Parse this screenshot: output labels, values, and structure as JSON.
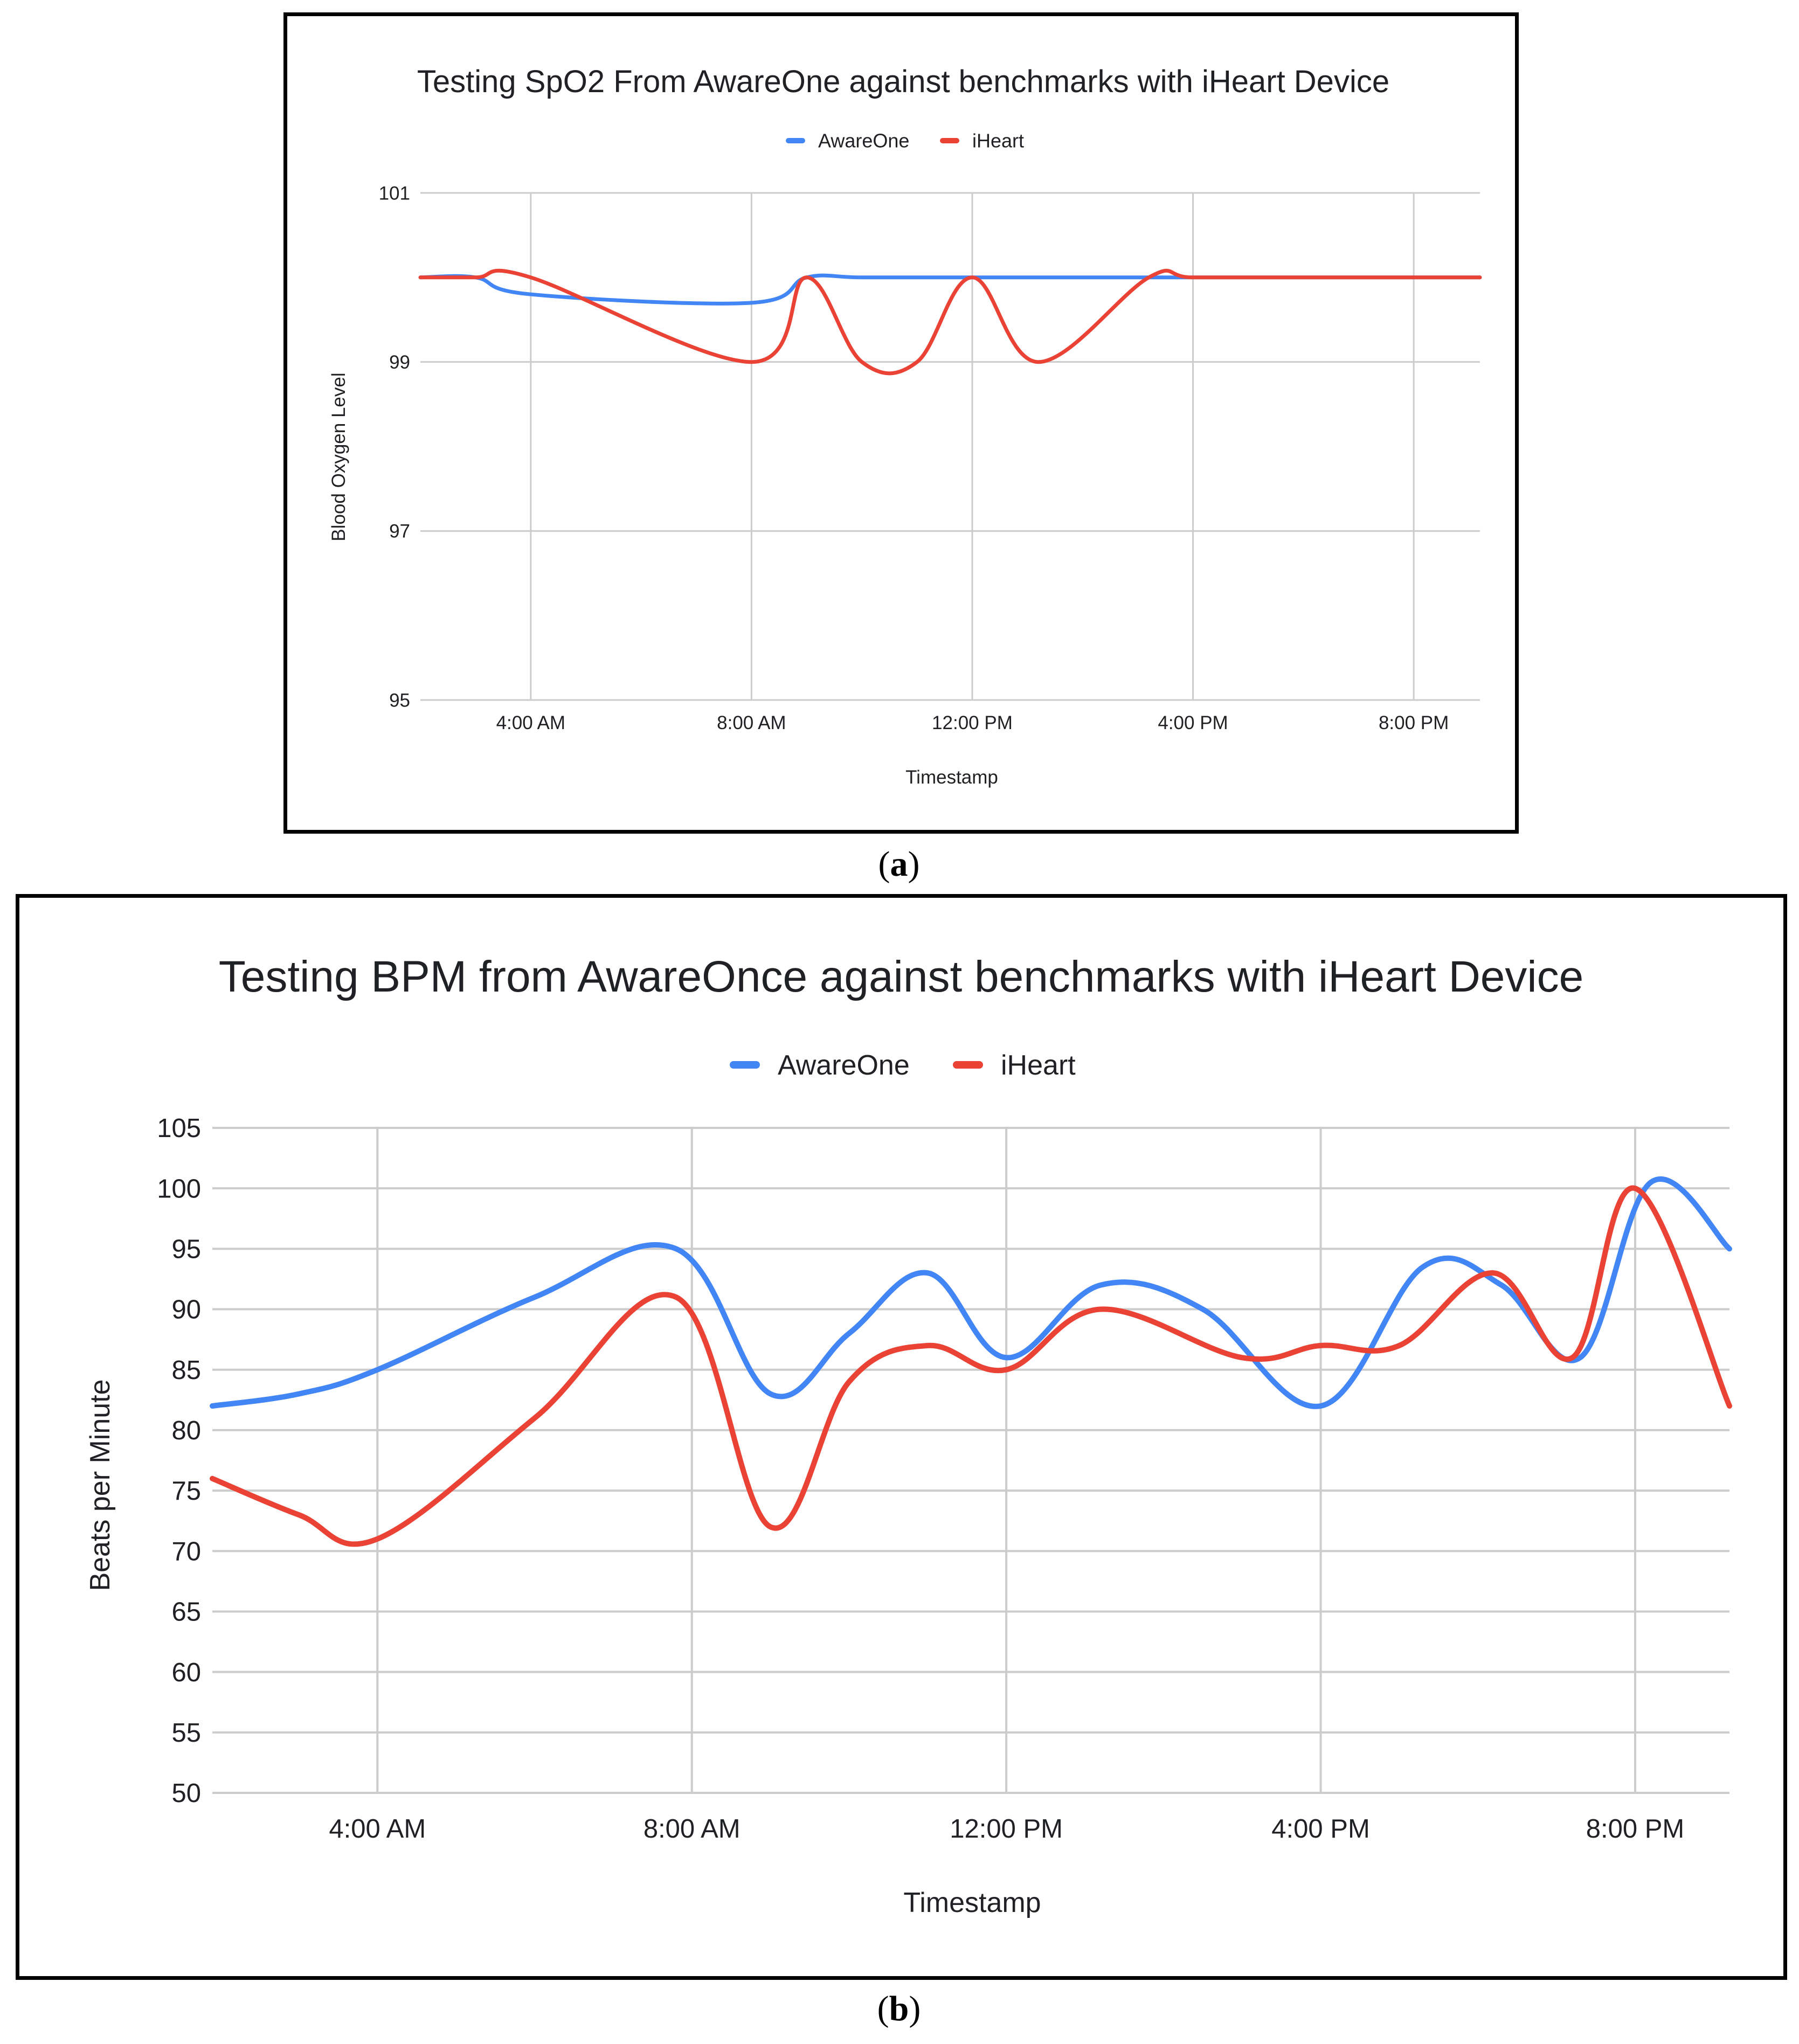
{
  "charts_page": {
    "caption_a": "a",
    "caption_b": "b"
  },
  "chart_data": [
    {
      "type": "line",
      "title": "Testing SpO2 From AwareOne against benchmarks with iHeart Device",
      "xlabel": "Timestamp",
      "ylabel": "Blood Oxygen Level",
      "x_ticks": [
        "4:00 AM",
        "8:00 AM",
        "12:00 PM",
        "4:00 PM",
        "8:00 PM"
      ],
      "x_tick_hours": [
        4,
        8,
        12,
        16,
        20
      ],
      "xlim_hours": [
        2,
        21.2
      ],
      "ylim": [
        95,
        101
      ],
      "y_ticks": [
        95,
        97,
        99,
        101
      ],
      "grid": true,
      "legend_position": "top-center",
      "series": [
        {
          "name": "AwareOne",
          "color": "#4285F4",
          "x_hours": [
            2.0,
            3.0,
            4.0,
            8.0,
            9.0,
            10.0,
            12.0,
            14.0,
            15.0,
            16.0,
            18.0,
            21.2
          ],
          "values": [
            100.0,
            100.0,
            99.8,
            99.7,
            100.0,
            100.0,
            100.0,
            100.0,
            100.0,
            100.0,
            100.0,
            100.0
          ]
        },
        {
          "name": "iHeart",
          "color": "#EA4335",
          "x_hours": [
            2.0,
            3.0,
            4.0,
            8.0,
            9.0,
            10.0,
            11.0,
            12.0,
            13.2,
            15.2,
            16.0,
            18.0,
            21.2
          ],
          "values": [
            100.0,
            100.0,
            100.0,
            99.0,
            100.0,
            99.0,
            99.0,
            100.0,
            99.0,
            100.0,
            100.0,
            100.0,
            100.0
          ]
        }
      ]
    },
    {
      "type": "line",
      "title": "Testing BPM from AwareOnce against benchmarks with iHeart Device",
      "xlabel": "Timestamp",
      "ylabel": "Beats per Minute",
      "x_ticks": [
        "4:00 AM",
        "8:00 AM",
        "12:00 PM",
        "4:00 PM",
        "8:00 PM"
      ],
      "x_tick_hours": [
        4,
        8,
        12,
        16,
        20
      ],
      "xlim_hours": [
        1.9,
        21.2
      ],
      "ylim": [
        50,
        105
      ],
      "y_ticks": [
        50,
        55,
        60,
        65,
        70,
        75,
        80,
        85,
        90,
        95,
        100,
        105
      ],
      "grid": true,
      "legend_position": "top-center",
      "series": [
        {
          "name": "AwareOne",
          "color": "#4285F4",
          "x_hours": [
            1.9,
            3.0,
            4.0,
            6.0,
            7.8,
            9.0,
            10.0,
            11.0,
            12.0,
            13.2,
            14.5,
            16.0,
            17.3,
            18.3,
            19.3,
            20.2,
            21.2
          ],
          "values": [
            82,
            83,
            85,
            91,
            95,
            83,
            88,
            93,
            86,
            92,
            90,
            82,
            93.5,
            92,
            86,
            100.5,
            95
          ]
        },
        {
          "name": "iHeart",
          "color": "#EA4335",
          "x_hours": [
            1.9,
            3.0,
            4.0,
            6.0,
            7.8,
            9.0,
            10.0,
            11.0,
            12.0,
            13.2,
            15.0,
            16.0,
            17.0,
            18.2,
            19.2,
            20.0,
            21.2
          ],
          "values": [
            76,
            73,
            71,
            81,
            91,
            72,
            84,
            87,
            85,
            90,
            86,
            87,
            87,
            93,
            86,
            100,
            82
          ]
        }
      ]
    }
  ]
}
